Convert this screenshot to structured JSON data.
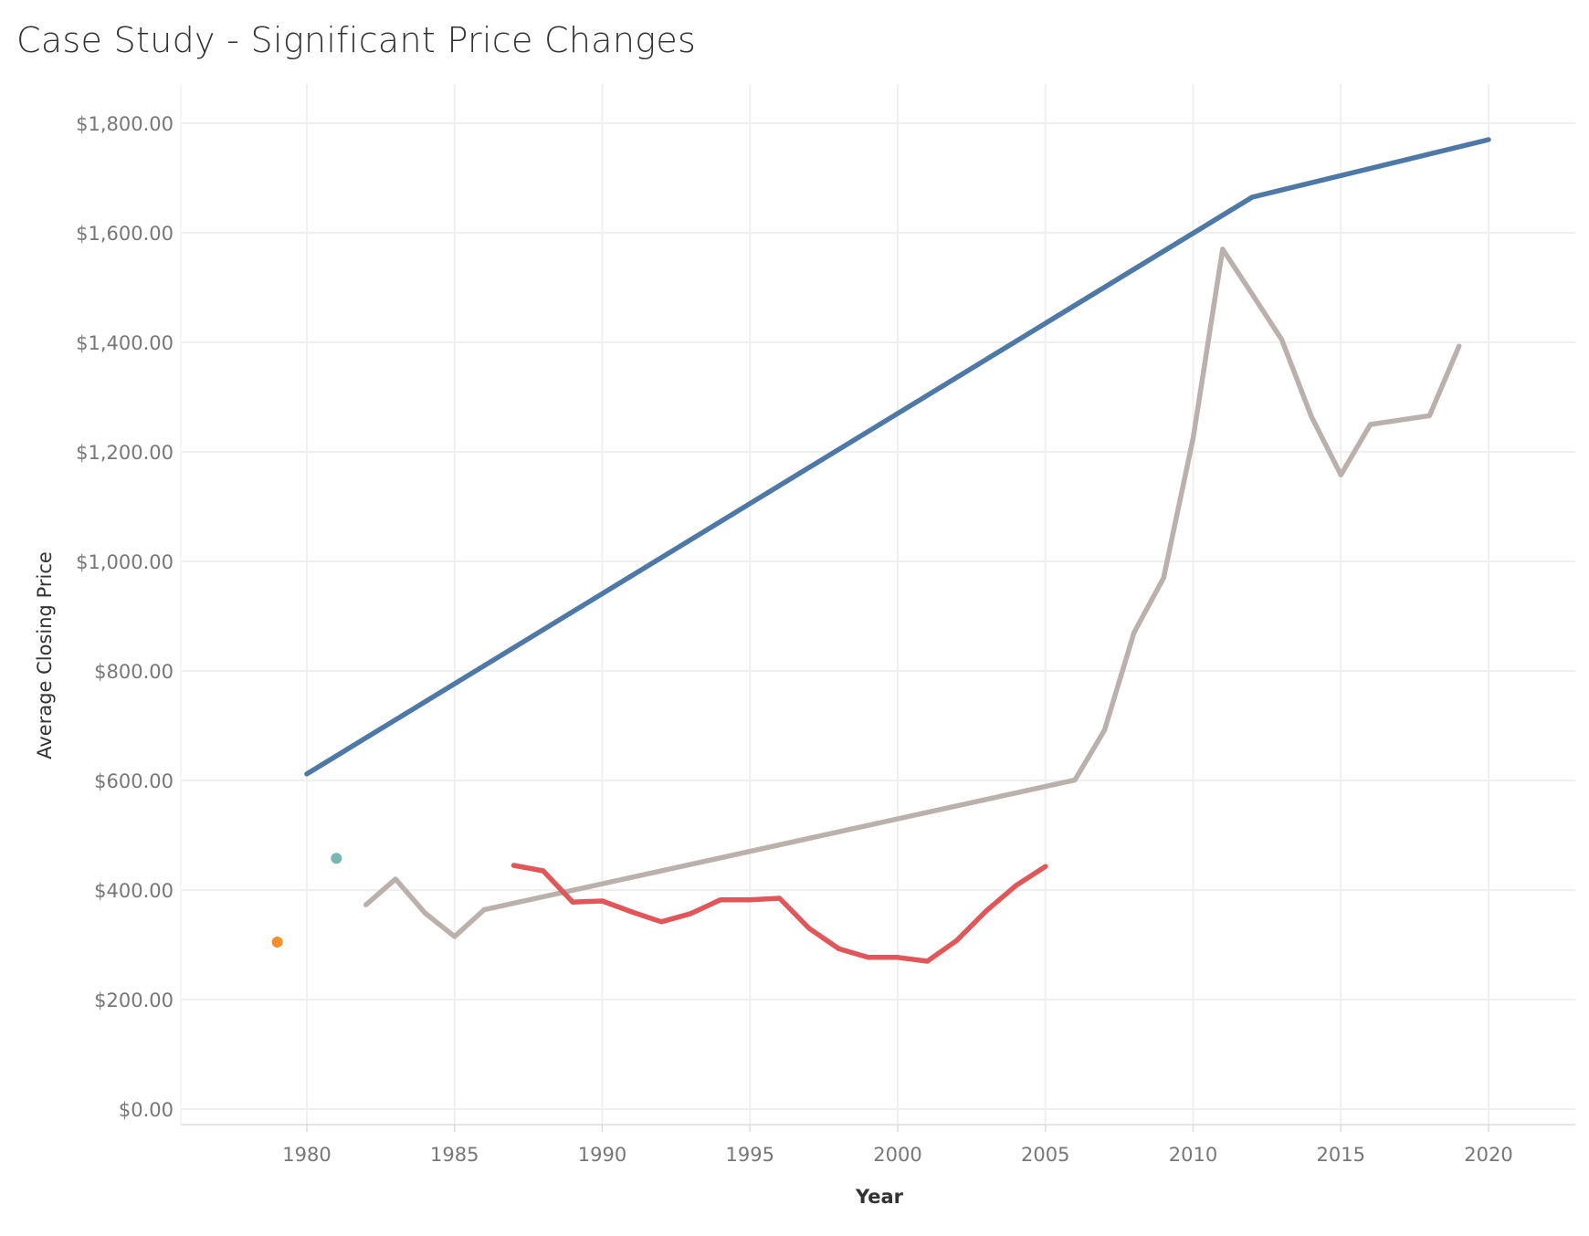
{
  "chart_data": {
    "type": "line",
    "title": "Case Study - Significant Price Changes",
    "xlabel": "Year",
    "ylabel": "Average Closing Price",
    "xlim": [
      1976,
      2023
    ],
    "ylim": [
      0,
      1800
    ],
    "x_ticks": [
      "1980",
      "1985",
      "1990",
      "1995",
      "2000",
      "2005",
      "2010",
      "2015",
      "2020"
    ],
    "y_ticks": [
      "$0.00",
      "$200.00",
      "$400.00",
      "$600.00",
      "$800.00",
      "$1,000.00",
      "$1,200.00",
      "$1,400.00",
      "$1,600.00",
      "$1,800.00"
    ],
    "grid": true,
    "series": [
      {
        "color": "#4e79a7",
        "points": [
          [
            1980,
            612
          ],
          [
            2012,
            1665
          ],
          [
            2020,
            1770
          ]
        ]
      },
      {
        "color": "#bab0ac",
        "points": [
          [
            1982,
            373
          ],
          [
            1983,
            420
          ],
          [
            1984,
            358
          ],
          [
            1985,
            315
          ],
          [
            1986,
            364
          ],
          [
            2006,
            601
          ],
          [
            2007,
            692
          ],
          [
            2008,
            870
          ],
          [
            2009,
            970
          ],
          [
            2010,
            1225
          ],
          [
            2011,
            1570
          ],
          [
            2012,
            1488
          ],
          [
            2013,
            1405
          ],
          [
            2014,
            1265
          ],
          [
            2015,
            1158
          ],
          [
            2016,
            1250
          ],
          [
            2018,
            1266
          ],
          [
            2019,
            1393
          ]
        ]
      },
      {
        "color": "#e15759",
        "points": [
          [
            1987,
            445
          ],
          [
            1988,
            435
          ],
          [
            1989,
            378
          ],
          [
            1990,
            380
          ],
          [
            1991,
            360
          ],
          [
            1992,
            342
          ],
          [
            1993,
            357
          ],
          [
            1994,
            382
          ],
          [
            1995,
            382
          ],
          [
            1996,
            385
          ],
          [
            1997,
            330
          ],
          [
            1998,
            293
          ],
          [
            1999,
            277
          ],
          [
            2000,
            277
          ],
          [
            2001,
            270
          ],
          [
            2002,
            308
          ],
          [
            2003,
            362
          ],
          [
            2004,
            408
          ],
          [
            2005,
            443
          ]
        ]
      },
      {
        "color": "#76b7b2",
        "points": [
          [
            1981,
            458
          ]
        ]
      },
      {
        "color": "#f28e2b",
        "points": [
          [
            1979,
            305
          ]
        ]
      }
    ]
  }
}
